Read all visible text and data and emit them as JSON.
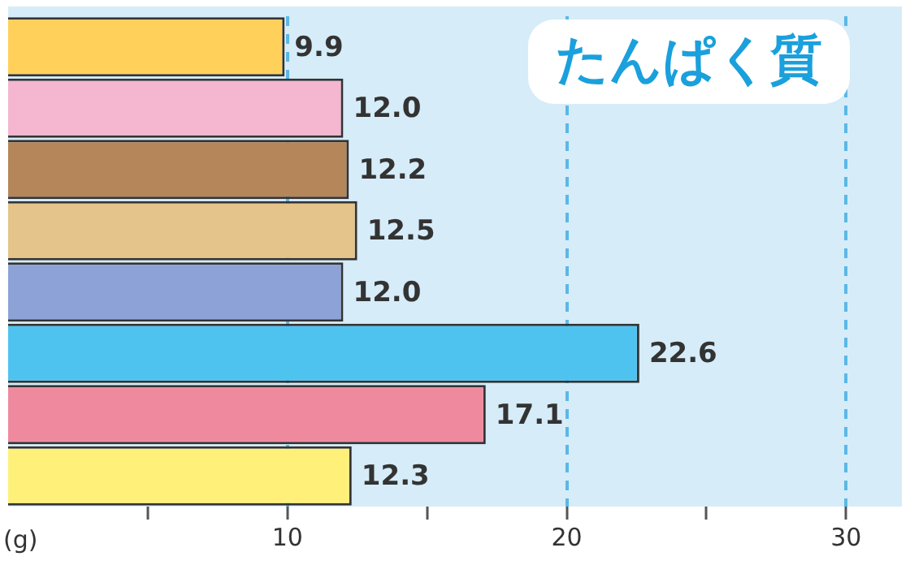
{
  "chart_data": {
    "type": "bar",
    "orientation": "horizontal",
    "title": "たんぱく質",
    "xlabel": "(g)",
    "categories": [
      null,
      null,
      null,
      null,
      null,
      null,
      null,
      null
    ],
    "values": [
      9.9,
      12.0,
      12.2,
      12.5,
      12.0,
      22.6,
      17.1,
      12.3
    ],
    "colors": [
      "#ffd05a",
      "#f5b6d0",
      "#b5865a",
      "#e4c48a",
      "#8da2d6",
      "#4fc3f0",
      "#ef8a9e",
      "#fff07a"
    ],
    "value_labels": [
      "9.9",
      "12.0",
      "12.2",
      "12.5",
      "12.0",
      "22.6",
      "17.1",
      "12.3"
    ],
    "xlim": [
      0,
      32
    ],
    "xticks": [
      {
        "value": 5,
        "label": null
      },
      10,
      {
        "value": 15,
        "label": null
      },
      20,
      {
        "value": 25,
        "label": null
      },
      30
    ],
    "grid": "x",
    "legend": false
  }
}
